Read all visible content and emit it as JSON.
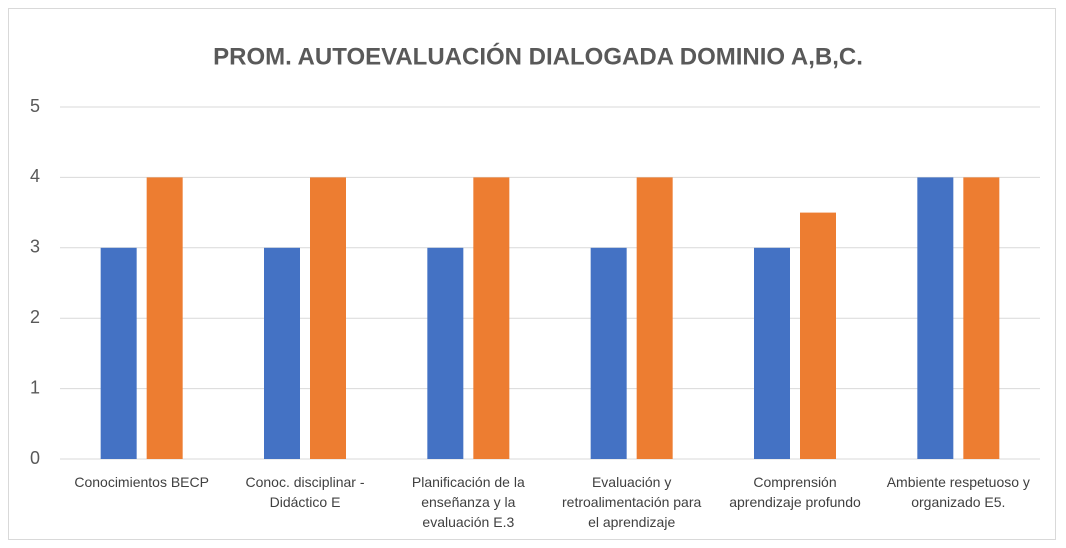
{
  "chart_data": {
    "type": "bar",
    "title": "PROM. AUTOEVALUACIÓN DIALOGADA DOMINIO A,B,C.",
    "categories": [
      "Conocimientos BECP",
      "Conoc. disciplinar - Didáctico E",
      "Planificación de la enseñanza y la evaluación E.3",
      "Evaluación y retroalimentación para el aprendizaje",
      "Comprensión aprendizaje profundo",
      "Ambiente respetuoso y organizado E5."
    ],
    "series": [
      {
        "color": "#4472c4",
        "values": [
          3,
          3,
          3,
          3,
          3,
          4
        ]
      },
      {
        "color": "#ed7d31",
        "values": [
          4,
          4,
          4,
          4,
          3.5,
          4
        ]
      }
    ],
    "ylim": [
      0,
      5
    ],
    "yticks": [
      0,
      1,
      2,
      3,
      4,
      5
    ],
    "grid": true
  }
}
